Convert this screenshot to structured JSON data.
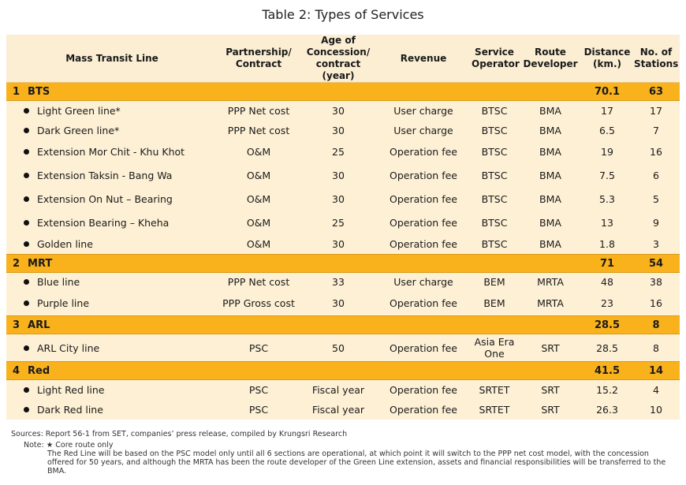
{
  "title": "Table 2: Types of Services",
  "headers": {
    "line": "Mass Transit Line",
    "partnership": "Partnership/ Contract",
    "age": "Age of Concession/ contract (year)",
    "revenue": "Revenue",
    "operator": "Service Operator",
    "developer": "Route Developer",
    "distance": "Distance (km.)",
    "stations": "No. of Stations"
  },
  "groups": [
    {
      "num": "1",
      "name": "BTS",
      "distance": "70.1",
      "stations": "63",
      "rows": [
        {
          "name": "Light Green line*",
          "partnership": "PPP Net cost",
          "age": "30",
          "revenue": "User charge",
          "operator": "BTSC",
          "developer": "BMA",
          "distance": "17",
          "stations": "17"
        },
        {
          "name": "Dark Green line*",
          "partnership": "PPP Net cost",
          "age": "30",
          "revenue": "User charge",
          "operator": "BTSC",
          "developer": "BMA",
          "distance": "6.5",
          "stations": "7"
        },
        {
          "name": "Extension Mor Chit - Khu Khot",
          "partnership": "O&M",
          "age": "25",
          "revenue": "Operation fee",
          "operator": "BTSC",
          "developer": "BMA",
          "distance": "19",
          "stations": "16"
        },
        {
          "name": "Extension Taksin - Bang Wa",
          "partnership": "O&M",
          "age": "30",
          "revenue": "Operation fee",
          "operator": "BTSC",
          "developer": "BMA",
          "distance": "7.5",
          "stations": "6"
        },
        {
          "name": "Extension On Nut – Bearing",
          "partnership": "O&M",
          "age": "30",
          "revenue": "Operation fee",
          "operator": "BTSC",
          "developer": "BMA",
          "distance": "5.3",
          "stations": "5"
        },
        {
          "name": "Extension Bearing – Kheha",
          "partnership": "O&M",
          "age": "25",
          "revenue": "Operation fee",
          "operator": "BTSC",
          "developer": "BMA",
          "distance": "13",
          "stations": "9"
        },
        {
          "name": "Golden line",
          "partnership": "O&M",
          "age": "30",
          "revenue": "Operation fee",
          "operator": "BTSC",
          "developer": "BMA",
          "distance": "1.8",
          "stations": "3"
        }
      ]
    },
    {
      "num": "2",
      "name": "MRT",
      "distance": "71",
      "stations": "54",
      "rows": [
        {
          "name": "Blue line",
          "partnership": "PPP Net cost",
          "age": "33",
          "revenue": "User charge",
          "operator": "BEM",
          "developer": "MRTA",
          "distance": "48",
          "stations": "38"
        },
        {
          "name": "Purple line",
          "partnership": "PPP Gross cost",
          "age": "30",
          "revenue": "Operation fee",
          "operator": "BEM",
          "developer": "MRTA",
          "distance": "23",
          "stations": "16"
        }
      ]
    },
    {
      "num": "3",
      "name": "ARL",
      "distance": "28.5",
      "stations": "8",
      "rows": [
        {
          "name": "ARL City line",
          "partnership": "PSC",
          "age": "50",
          "revenue": "Operation fee",
          "operator": "Asia Era One",
          "developer": "SRT",
          "distance": "28.5",
          "stations": "8"
        }
      ]
    },
    {
      "num": "4",
      "name": "Red",
      "distance": "41.5",
      "stations": "14",
      "rows": [
        {
          "name": "Light Red line",
          "partnership": "PSC",
          "age": "Fiscal year",
          "revenue": "Operation fee",
          "operator": "SRTET",
          "developer": "SRT",
          "distance": "15.2",
          "stations": "4"
        },
        {
          "name": "Dark Red line",
          "partnership": "PSC",
          "age": "Fiscal year",
          "revenue": "Operation fee",
          "operator": "SRTET",
          "developer": "SRT",
          "distance": "26.3",
          "stations": "10"
        }
      ]
    }
  ],
  "notes": {
    "sources": "Sources: Report 56-1 from SET, companies’ press release, compiled by Krungsri Research",
    "note": "Note: ★ Core route only",
    "body": "The Red Line will be based on the PSC model only until all 6 sections are operational, at which point it will switch to the PPP net cost model, with the concession offered for 50 years, and although the MRTA has been the route developer of the Green Line extension, assets and financial responsibilities will be transferred to the BMA."
  },
  "colors": {
    "category_band": "#f9b21c",
    "row_bg": "#fdf0d5",
    "header_bg": "#fbeed3"
  }
}
